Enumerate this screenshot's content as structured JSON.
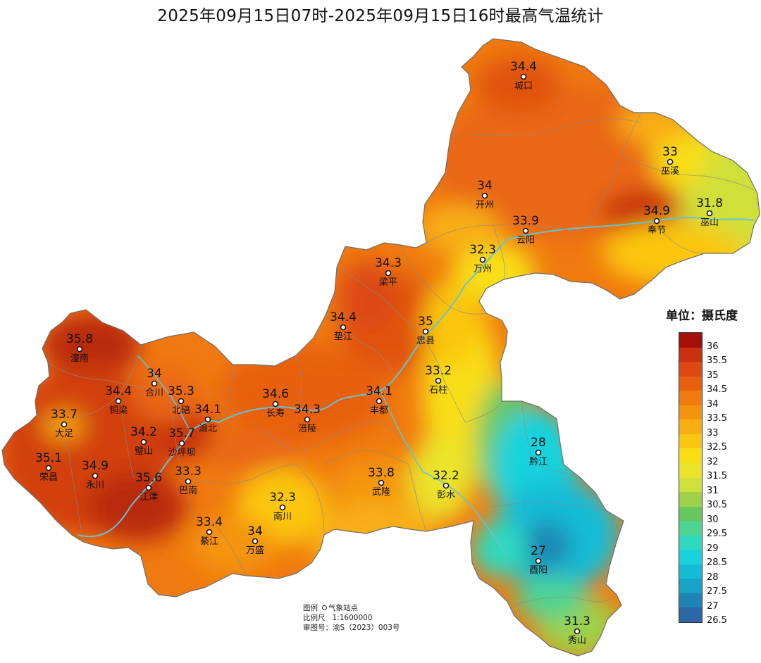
{
  "title": "2025年09月15日07时-2025年09月15日16时最高气温统计",
  "legend": {
    "unit_title": "单位：摄氏度",
    "labels": [
      "36",
      "35.5",
      "35",
      "34.5",
      "34",
      "33.5",
      "33",
      "32.5",
      "32",
      "31.5",
      "31",
      "30.5",
      "30",
      "29.5",
      "29",
      "28.5",
      "28",
      "27.5",
      "27",
      "26.5"
    ],
    "colors": [
      "#a50f08",
      "#c8300e",
      "#dc4a12",
      "#e8600e",
      "#f07a10",
      "#f5940e",
      "#f8ae12",
      "#fbc610",
      "#f8de16",
      "#eae42a",
      "#cfe03a",
      "#9fd04a",
      "#68c65e",
      "#4ed492",
      "#2ed9c0",
      "#18d3de",
      "#14bcd6",
      "#16a3c6",
      "#1f84b4",
      "#2c68a6"
    ]
  },
  "stations": [
    {
      "name": "城口",
      "value": "34.4"
    },
    {
      "name": "巫溪",
      "value": "33"
    },
    {
      "name": "开州",
      "value": "34"
    },
    {
      "name": "巫山",
      "value": "31.8"
    },
    {
      "name": "奉节",
      "value": "34.9"
    },
    {
      "name": "云阳",
      "value": "33.9"
    },
    {
      "name": "万州",
      "value": "32.3"
    },
    {
      "name": "梁平",
      "value": "34.3"
    },
    {
      "name": "垫江",
      "value": "34.4"
    },
    {
      "name": "忠县",
      "value": "35"
    },
    {
      "name": "潼南",
      "value": "35.8"
    },
    {
      "name": "石柱",
      "value": "33.2"
    },
    {
      "name": "合川",
      "value": "34"
    },
    {
      "name": "铜梁",
      "value": "34.4"
    },
    {
      "name": "北碚",
      "value": "35.3"
    },
    {
      "name": "长寿",
      "value": "34.6"
    },
    {
      "name": "丰都",
      "value": "34.1"
    },
    {
      "name": "大足",
      "value": "33.7"
    },
    {
      "name": "渝北",
      "value": "34.1"
    },
    {
      "name": "涪陵",
      "value": "34.3"
    },
    {
      "name": "璧山",
      "value": "34.2"
    },
    {
      "name": "沙坪坝",
      "value": "35.7"
    },
    {
      "name": "黔江",
      "value": "28"
    },
    {
      "name": "荣昌",
      "value": "35.1"
    },
    {
      "name": "永川",
      "value": "34.9"
    },
    {
      "name": "巴南",
      "value": "33.3"
    },
    {
      "name": "武隆",
      "value": "33.8"
    },
    {
      "name": "彭水",
      "value": "32.2"
    },
    {
      "name": "江津",
      "value": "35.6"
    },
    {
      "name": "南川",
      "value": "32.3"
    },
    {
      "name": "綦江",
      "value": "33.4"
    },
    {
      "name": "万盛",
      "value": "34"
    },
    {
      "name": "酉阳",
      "value": "27"
    },
    {
      "name": "秀山",
      "value": "31.3"
    }
  ],
  "map_info": {
    "legend_label": "图例",
    "station_label": "气象站点",
    "scale_label": "比例尺",
    "scale_value": "1:1600000",
    "approval_label": "审图号：",
    "approval_value": "渝S（2023）003号"
  }
}
